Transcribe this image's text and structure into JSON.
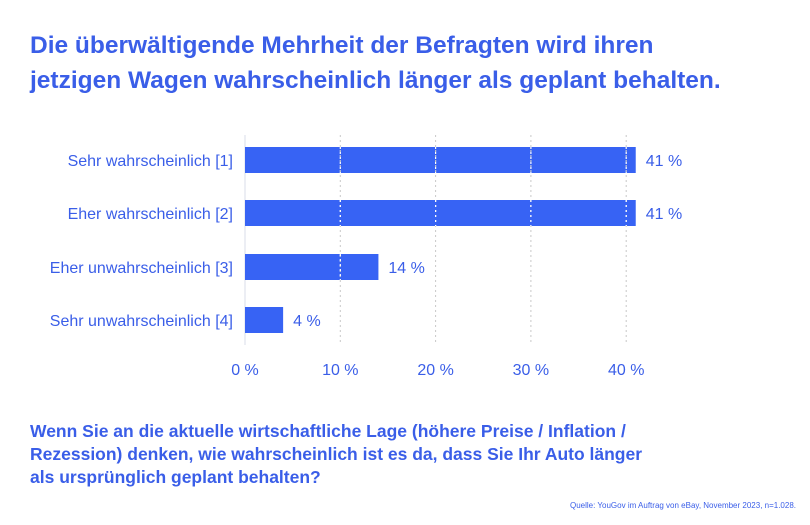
{
  "title": [
    "Die überwältigende Mehrheit der Befragten wird ihren",
    "jetzigen Wagen wahrscheinlich länger als geplant behalten."
  ],
  "question": [
    "Wenn Sie an die aktuelle wirtschaftliche Lage (höhere Preise / Inflation /",
    "Rezession) denken, wie wahrscheinlich ist es da, dass Sie Ihr Auto länger",
    "als ursprünglich geplant behalten?"
  ],
  "source": "Quelle: YouGov im Auftrag von eBay, November 2023, n=1.028.",
  "colors": {
    "bar": "#3763f4",
    "text": "#3a5ee8",
    "grid": "#d0d0d0"
  },
  "chart_data": {
    "type": "bar",
    "orientation": "horizontal",
    "categories": [
      "Sehr wahrscheinlich [1]",
      "Eher wahrscheinlich [2]",
      "Eher unwahrscheinlich [3]",
      "Sehr unwahrscheinlich [4]"
    ],
    "values": [
      41,
      41,
      14,
      4
    ],
    "data_labels": [
      "41 %",
      "41 %",
      "14 %",
      "4 %"
    ],
    "xlim": [
      0,
      40
    ],
    "xticks": [
      0,
      10,
      20,
      30,
      40
    ],
    "xtick_labels": [
      "0 %",
      "10 %",
      "20 %",
      "30 %",
      "40 %"
    ],
    "grid": "vertical dotted"
  }
}
